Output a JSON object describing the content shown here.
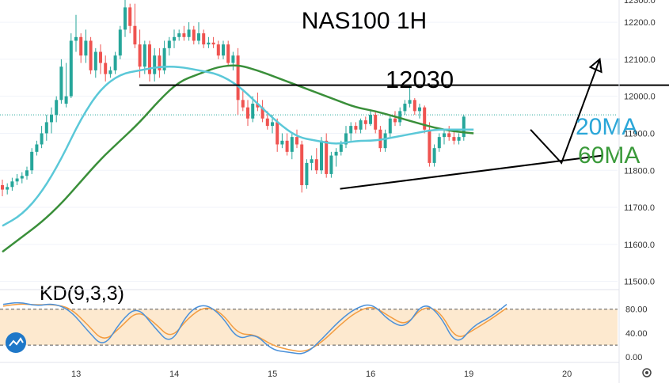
{
  "chart_data": {
    "type": "candlestick",
    "title": "NAS100 1H",
    "price_axis": {
      "ylim": [
        11480,
        12260
      ],
      "ticks": [
        11500,
        11600,
        11700,
        11800,
        11900,
        12000,
        12100,
        12200
      ],
      "tick_labels": [
        "11500.0",
        "11600.0",
        "11700.0",
        "11800.0",
        "11900.0",
        "12000.0",
        "12100.0",
        "12200.0"
      ],
      "top_cut_label": "12300.0"
    },
    "x_axis": {
      "tick_labels": [
        "13",
        "14",
        "15",
        "16",
        "19",
        "20"
      ],
      "tick_positions": [
        10.5,
        30.5,
        50.5,
        70.5,
        90.5,
        110.5
      ]
    },
    "current_price": 11950,
    "candles": [
      [
        11760,
        11775,
        11730,
        11748
      ],
      [
        11748,
        11765,
        11735,
        11755
      ],
      [
        11755,
        11780,
        11745,
        11770
      ],
      [
        11770,
        11790,
        11760,
        11778
      ],
      [
        11778,
        11795,
        11765,
        11785
      ],
      [
        11785,
        11810,
        11775,
        11800
      ],
      [
        11800,
        11860,
        11790,
        11850
      ],
      [
        11850,
        11880,
        11840,
        11870
      ],
      [
        11870,
        11920,
        11860,
        11900
      ],
      [
        11900,
        11950,
        11880,
        11930
      ],
      [
        11930,
        11970,
        11900,
        11950
      ],
      [
        11950,
        12000,
        11930,
        11990
      ],
      [
        11990,
        12100,
        11980,
        12080
      ],
      [
        11980,
        12090,
        11970,
        12000
      ],
      [
        12000,
        12170,
        11995,
        12150
      ],
      [
        12150,
        12220,
        12120,
        12160
      ],
      [
        12160,
        12170,
        12090,
        12110
      ],
      [
        12110,
        12180,
        12090,
        12150
      ],
      [
        12150,
        12160,
        12060,
        12070
      ],
      [
        12070,
        12130,
        12050,
        12120
      ],
      [
        12120,
        12140,
        12060,
        12090
      ],
      [
        12090,
        12110,
        12040,
        12060
      ],
      [
        12060,
        12080,
        12050,
        12070
      ],
      [
        12070,
        12120,
        12060,
        12110
      ],
      [
        12110,
        12190,
        12100,
        12180
      ],
      [
        12180,
        12260,
        12160,
        12240
      ],
      [
        12240,
        12250,
        12170,
        12190
      ],
      [
        12190,
        12250,
        12130,
        12140
      ],
      [
        12140,
        12180,
        12050,
        12080
      ],
      [
        12080,
        12150,
        12060,
        12140
      ],
      [
        12140,
        12150,
        12040,
        12060
      ],
      [
        12060,
        12130,
        12040,
        12110
      ],
      [
        12110,
        12130,
        12050,
        12070
      ],
      [
        12070,
        12150,
        12060,
        12130
      ],
      [
        12130,
        12160,
        12110,
        12150
      ],
      [
        12150,
        12180,
        12130,
        12160
      ],
      [
        12160,
        12180,
        12150,
        12170
      ],
      [
        12170,
        12190,
        12150,
        12160
      ],
      [
        12160,
        12200,
        12150,
        12180
      ],
      [
        12180,
        12190,
        12140,
        12150
      ],
      [
        12150,
        12200,
        12140,
        12170
      ],
      [
        12170,
        12180,
        12130,
        12140
      ],
      [
        12140,
        12160,
        12130,
        12145
      ],
      [
        12145,
        12160,
        12130,
        12140
      ],
      [
        12140,
        12150,
        12100,
        12110
      ],
      [
        12110,
        12150,
        12100,
        12140
      ],
      [
        12140,
        12150,
        12080,
        12090
      ],
      [
        12090,
        12120,
        12070,
        12110
      ],
      [
        12110,
        12130,
        11950,
        11990
      ],
      [
        11990,
        12020,
        11960,
        11970
      ],
      [
        11970,
        11990,
        11920,
        11940
      ],
      [
        11940,
        12000,
        11930,
        11980
      ],
      [
        11980,
        12010,
        11960,
        11970
      ],
      [
        11970,
        11990,
        11930,
        11940
      ],
      [
        11940,
        11960,
        11910,
        11920
      ],
      [
        11920,
        11950,
        11900,
        11930
      ],
      [
        11930,
        11940,
        11850,
        11870
      ],
      [
        11870,
        11900,
        11860,
        11880
      ],
      [
        11880,
        11900,
        11840,
        11850
      ],
      [
        11850,
        11900,
        11830,
        11890
      ],
      [
        11890,
        11910,
        11860,
        11870
      ],
      [
        11870,
        11880,
        11740,
        11760
      ],
      [
        11760,
        11830,
        11750,
        11820
      ],
      [
        11820,
        11840,
        11800,
        11830
      ],
      [
        11830,
        11860,
        11790,
        11800
      ],
      [
        11800,
        11890,
        11790,
        11880
      ],
      [
        11880,
        11900,
        11780,
        11790
      ],
      [
        11790,
        11850,
        11780,
        11840
      ],
      [
        11840,
        11860,
        11810,
        11850
      ],
      [
        11850,
        11880,
        11840,
        11870
      ],
      [
        11870,
        11920,
        11860,
        11900
      ],
      [
        11900,
        11930,
        11880,
        11920
      ],
      [
        11920,
        11930,
        11900,
        11910
      ],
      [
        11910,
        11940,
        11900,
        11935
      ],
      [
        11935,
        11945,
        11910,
        11925
      ],
      [
        11925,
        11960,
        11920,
        11950
      ],
      [
        11950,
        11960,
        11900,
        11910
      ],
      [
        11910,
        11920,
        11850,
        11860
      ],
      [
        11860,
        11910,
        11850,
        11900
      ],
      [
        11900,
        11950,
        11890,
        11940
      ],
      [
        11940,
        11960,
        11920,
        11930
      ],
      [
        11930,
        11970,
        11920,
        11960
      ],
      [
        11960,
        11990,
        11950,
        11980
      ],
      [
        11980,
        12030,
        11970,
        11990
      ],
      [
        11990,
        11995,
        11950,
        11960
      ],
      [
        11960,
        11980,
        11940,
        11970
      ],
      [
        11970,
        11975,
        11900,
        11910
      ],
      [
        11910,
        11930,
        11810,
        11820
      ],
      [
        11820,
        11870,
        11810,
        11860
      ],
      [
        11860,
        11900,
        11850,
        11890
      ],
      [
        11890,
        11910,
        11870,
        11900
      ],
      [
        11900,
        11920,
        11880,
        11890
      ],
      [
        11890,
        11910,
        11870,
        11880
      ],
      [
        11880,
        11900,
        11870,
        11890
      ],
      [
        11890,
        11950,
        11880,
        11945
      ]
    ],
    "ma20": [
      [
        0,
        11650
      ],
      [
        4,
        11680
      ],
      [
        8,
        11740
      ],
      [
        12,
        11830
      ],
      [
        16,
        11940
      ],
      [
        20,
        12020
      ],
      [
        24,
        12060
      ],
      [
        28,
        12070
      ],
      [
        32,
        12080
      ],
      [
        36,
        12080
      ],
      [
        40,
        12070
      ],
      [
        44,
        12060
      ],
      [
        48,
        12030
      ],
      [
        52,
        11980
      ],
      [
        56,
        11930
      ],
      [
        60,
        11890
      ],
      [
        64,
        11880
      ],
      [
        68,
        11870
      ],
      [
        72,
        11880
      ],
      [
        76,
        11880
      ],
      [
        80,
        11890
      ],
      [
        84,
        11900
      ],
      [
        88,
        11910
      ],
      [
        92,
        11910
      ],
      [
        96,
        11910
      ]
    ],
    "ma60": [
      [
        0,
        11580
      ],
      [
        4,
        11620
      ],
      [
        8,
        11660
      ],
      [
        12,
        11710
      ],
      [
        16,
        11770
      ],
      [
        20,
        11830
      ],
      [
        24,
        11880
      ],
      [
        28,
        11930
      ],
      [
        32,
        11990
      ],
      [
        36,
        12040
      ],
      [
        40,
        12060
      ],
      [
        44,
        12080
      ],
      [
        48,
        12085
      ],
      [
        52,
        12070
      ],
      [
        56,
        12050
      ],
      [
        60,
        12030
      ],
      [
        64,
        12010
      ],
      [
        68,
        11990
      ],
      [
        72,
        11970
      ],
      [
        76,
        11960
      ],
      [
        80,
        11945
      ],
      [
        84,
        11930
      ],
      [
        88,
        11915
      ],
      [
        92,
        11905
      ],
      [
        96,
        11900
      ]
    ],
    "resistance_line": {
      "from": [
        27.9,
        12030
      ],
      "to": [
        138,
        12030
      ]
    },
    "support_line": {
      "from": [
        68.8,
        11750
      ],
      "to": [
        122.3,
        11840
      ]
    },
    "projection": [
      [
        107.6,
        11910
      ],
      [
        113.9,
        11820
      ],
      [
        121.7,
        12100
      ]
    ],
    "kd": {
      "label": "KD(9,3,3)",
      "ylim": [
        -5,
        110
      ],
      "ticks": [
        0,
        40,
        80
      ],
      "tick_labels": [
        "0.00",
        "40.00",
        "80.00"
      ],
      "band": [
        20,
        80
      ],
      "k": [
        [
          0,
          88
        ],
        [
          4,
          92
        ],
        [
          8,
          85
        ],
        [
          12,
          90
        ],
        [
          16,
          78
        ],
        [
          20,
          45
        ],
        [
          24,
          15
        ],
        [
          28,
          60
        ],
        [
          32,
          85
        ],
        [
          36,
          50
        ],
        [
          40,
          20
        ],
        [
          44,
          75
        ],
        [
          48,
          90
        ],
        [
          52,
          70
        ],
        [
          56,
          28
        ],
        [
          60,
          40
        ],
        [
          64,
          12
        ],
        [
          68,
          8
        ],
        [
          72,
          4
        ],
        [
          76,
          30
        ],
        [
          80,
          60
        ],
        [
          84,
          82
        ],
        [
          88,
          90
        ],
        [
          92,
          60
        ],
        [
          96,
          48
        ],
        [
          100,
          92
        ],
        [
          104,
          72
        ],
        [
          108,
          18
        ],
        [
          112,
          52
        ],
        [
          116,
          66
        ],
        [
          120,
          88
        ]
      ],
      "d": [
        [
          0,
          85
        ],
        [
          4,
          89
        ],
        [
          8,
          87
        ],
        [
          12,
          88
        ],
        [
          16,
          82
        ],
        [
          20,
          55
        ],
        [
          24,
          25
        ],
        [
          28,
          50
        ],
        [
          32,
          78
        ],
        [
          36,
          58
        ],
        [
          40,
          30
        ],
        [
          44,
          65
        ],
        [
          48,
          85
        ],
        [
          52,
          75
        ],
        [
          56,
          38
        ],
        [
          60,
          38
        ],
        [
          64,
          20
        ],
        [
          68,
          12
        ],
        [
          72,
          8
        ],
        [
          76,
          25
        ],
        [
          80,
          52
        ],
        [
          84,
          75
        ],
        [
          88,
          86
        ],
        [
          92,
          68
        ],
        [
          96,
          52
        ],
        [
          100,
          85
        ],
        [
          104,
          78
        ],
        [
          108,
          28
        ],
        [
          112,
          45
        ],
        [
          116,
          62
        ],
        [
          120,
          82
        ]
      ]
    },
    "annotations": {
      "level_label": "12030",
      "ma20_label": "20MA",
      "ma60_label": "60MA"
    },
    "colors": {
      "up": "#26a69a",
      "down": "#ef5350",
      "ma20": "#5bc8d8",
      "ma60": "#3a8f3a",
      "kd_k": "#4a90d9",
      "kd_d": "#f39c40",
      "kd_band": "#fde9cf",
      "ma20_label": "#2aa6d8",
      "ma60_label": "#3a9a3a"
    }
  }
}
